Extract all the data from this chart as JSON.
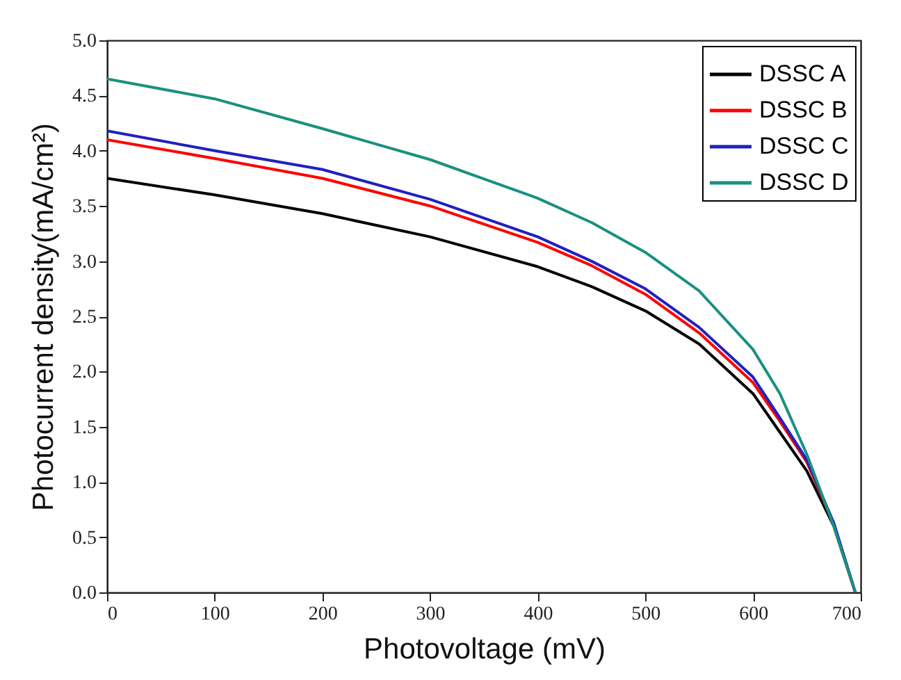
{
  "chart_data": {
    "type": "line",
    "xlabel": "Photovoltage (mV)",
    "ylabel": "Photocurrent density(mA/cm²)",
    "xlim": [
      0,
      700
    ],
    "xticks": [
      0,
      100,
      200,
      300,
      400,
      500,
      600,
      700
    ],
    "ylim": [
      0,
      5
    ],
    "yticks": [
      {
        "value": 0,
        "label": "0.0"
      },
      {
        "value": 0.5,
        "label": "0.5"
      },
      {
        "value": 1,
        "label": "1.0"
      },
      {
        "value": 1.5,
        "label": "1.5"
      },
      {
        "value": 2,
        "label": "2.0"
      },
      {
        "value": 2.5,
        "label": "2.5"
      },
      {
        "value": 3,
        "label": "3.0"
      },
      {
        "value": 3.5,
        "label": "3.5"
      },
      {
        "value": 4,
        "label": "4.0"
      },
      {
        "value": 4.5,
        "label": "4.5"
      },
      {
        "value": 5,
        "label": "5.0"
      }
    ],
    "grid": false,
    "legend": "top right",
    "marker": "none",
    "line_style": "solid",
    "x": [
      0,
      100,
      200,
      300,
      400,
      450,
      500,
      550,
      600,
      625,
      650,
      675,
      695
    ],
    "series": [
      {
        "name": "DSSC A",
        "color": "#000000",
        "values": [
          3.75,
          3.6,
          3.43,
          3.22,
          2.95,
          2.77,
          2.55,
          2.25,
          1.8,
          1.45,
          1.1,
          0.6,
          0
        ]
      },
      {
        "name": "DSSC B",
        "color": "#ff0000",
        "values": [
          4.1,
          3.93,
          3.75,
          3.5,
          3.17,
          2.96,
          2.7,
          2.35,
          1.9,
          1.55,
          1.18,
          0.62,
          0
        ]
      },
      {
        "name": "DSSC C",
        "color": "#2020c0",
        "values": [
          4.18,
          4.0,
          3.83,
          3.56,
          3.22,
          3.0,
          2.75,
          2.4,
          1.95,
          1.58,
          1.2,
          0.63,
          0
        ]
      },
      {
        "name": "DSSC D",
        "color": "#1a9080",
        "values": [
          4.65,
          4.47,
          4.2,
          3.92,
          3.57,
          3.35,
          3.08,
          2.73,
          2.2,
          1.8,
          1.25,
          0.6,
          0
        ]
      }
    ]
  }
}
